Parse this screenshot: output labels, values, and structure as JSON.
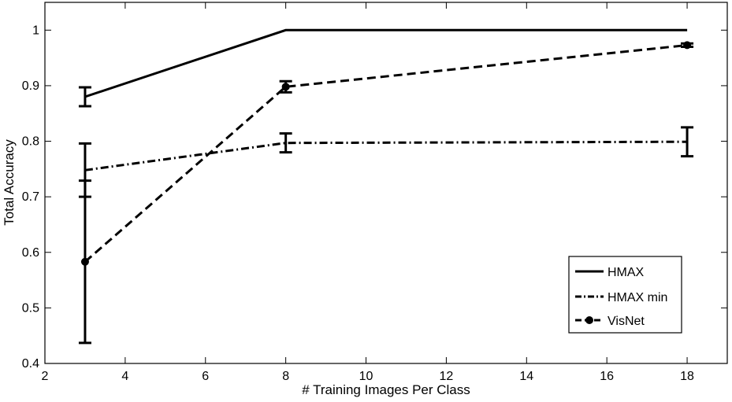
{
  "chart_data": {
    "type": "line",
    "title": "",
    "xlabel": "# Training Images Per Class",
    "ylabel": "Total Accuracy",
    "xlim": [
      2,
      19
    ],
    "ylim": [
      0.4,
      1.05
    ],
    "xticks": [
      2,
      4,
      6,
      8,
      10,
      12,
      14,
      16,
      18
    ],
    "yticks": [
      0.4,
      0.5,
      0.6,
      0.7,
      0.8,
      0.9,
      1
    ],
    "xtick_labels": [
      "2",
      "4",
      "6",
      "8",
      "10",
      "12",
      "14",
      "16",
      "18"
    ],
    "ytick_labels": [
      "0.4",
      "0.5",
      "0.6",
      "0.7",
      "0.8",
      "0.9",
      "1"
    ],
    "grid": false,
    "legend_position": "bottom-right",
    "x": [
      3,
      8,
      18
    ],
    "series": [
      {
        "name": "HMAX",
        "style": "solid",
        "marker": "none",
        "color": "#000000",
        "values": [
          0.88,
          1.0,
          1.0
        ],
        "errors": [
          0.017,
          0,
          0
        ]
      },
      {
        "name": "HMAX min",
        "style": "dash-dot",
        "marker": "none",
        "color": "#000000",
        "values": [
          0.748,
          0.797,
          0.799
        ],
        "errors": [
          0.048,
          0.017,
          0.026
        ]
      },
      {
        "name": "VisNet",
        "style": "dashed",
        "marker": "circle",
        "color": "#000000",
        "values": [
          0.583,
          0.898,
          0.973
        ],
        "errors": [
          0.146,
          0.01,
          0.003
        ]
      }
    ]
  }
}
